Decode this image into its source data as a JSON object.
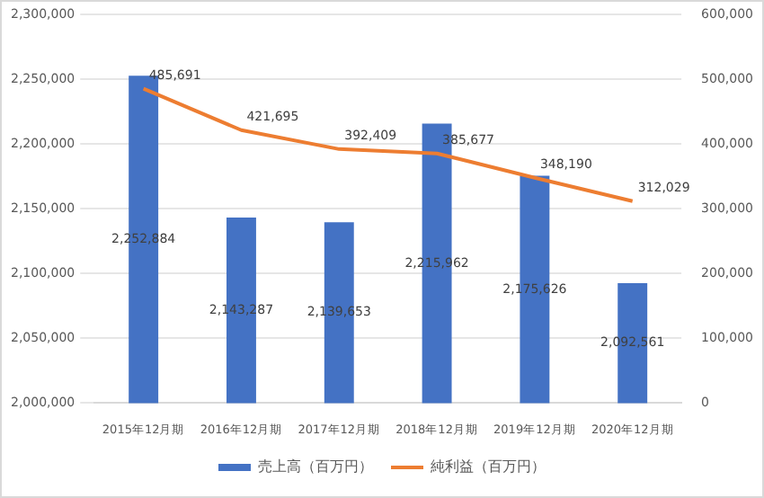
{
  "chart_data": {
    "type": "bar",
    "categories": [
      "2015年12月期",
      "2016年12月期",
      "2017年12月期",
      "2018年12月期",
      "2019年12月期",
      "2020年12月期"
    ],
    "series": [
      {
        "name": "売上高（百万円）",
        "color": "#4472c4",
        "values": [
          2252884,
          2143287,
          2139653,
          2215962,
          2175626,
          2092561
        ],
        "value_labels": [
          "2,252,884",
          "2,143,287",
          "2,139,653",
          "2,215,962",
          "2,175,626",
          "2,092,561"
        ]
      },
      {
        "name": "純利益（百万円）",
        "type": "line",
        "axis": "y2",
        "color": "#ed7d31",
        "values": [
          485691,
          421695,
          392409,
          385677,
          348190,
          312029
        ],
        "value_labels": [
          "485,691",
          "421,695",
          "392,409",
          "385,677",
          "348,190",
          "312,029"
        ]
      }
    ],
    "ylim": [
      2000000,
      2300000
    ],
    "yticks": [
      {
        "value": 2000000,
        "label": "2,000,000"
      },
      {
        "value": 2050000,
        "label": "2,050,000"
      },
      {
        "value": 2100000,
        "label": "2,100,000"
      },
      {
        "value": 2150000,
        "label": "2,150,000"
      },
      {
        "value": 2200000,
        "label": "2,200,000"
      },
      {
        "value": 2250000,
        "label": "2,250,000"
      },
      {
        "value": 2300000,
        "label": "2,300,000"
      }
    ],
    "y2lim": [
      0,
      600000
    ],
    "y2ticks": [
      0,
      {
        "value": 100000,
        "label": "100,000"
      },
      {
        "value": 200000,
        "label": "200,000"
      },
      {
        "value": 300000,
        "label": "300,000"
      },
      {
        "value": 400000,
        "label": "400,000"
      },
      {
        "value": 500000,
        "label": "500,000"
      },
      {
        "value": 600000,
        "label": "600,000"
      }
    ],
    "grid": "y",
    "legend": "bottom",
    "marker": "none",
    "line_style": "solid"
  }
}
